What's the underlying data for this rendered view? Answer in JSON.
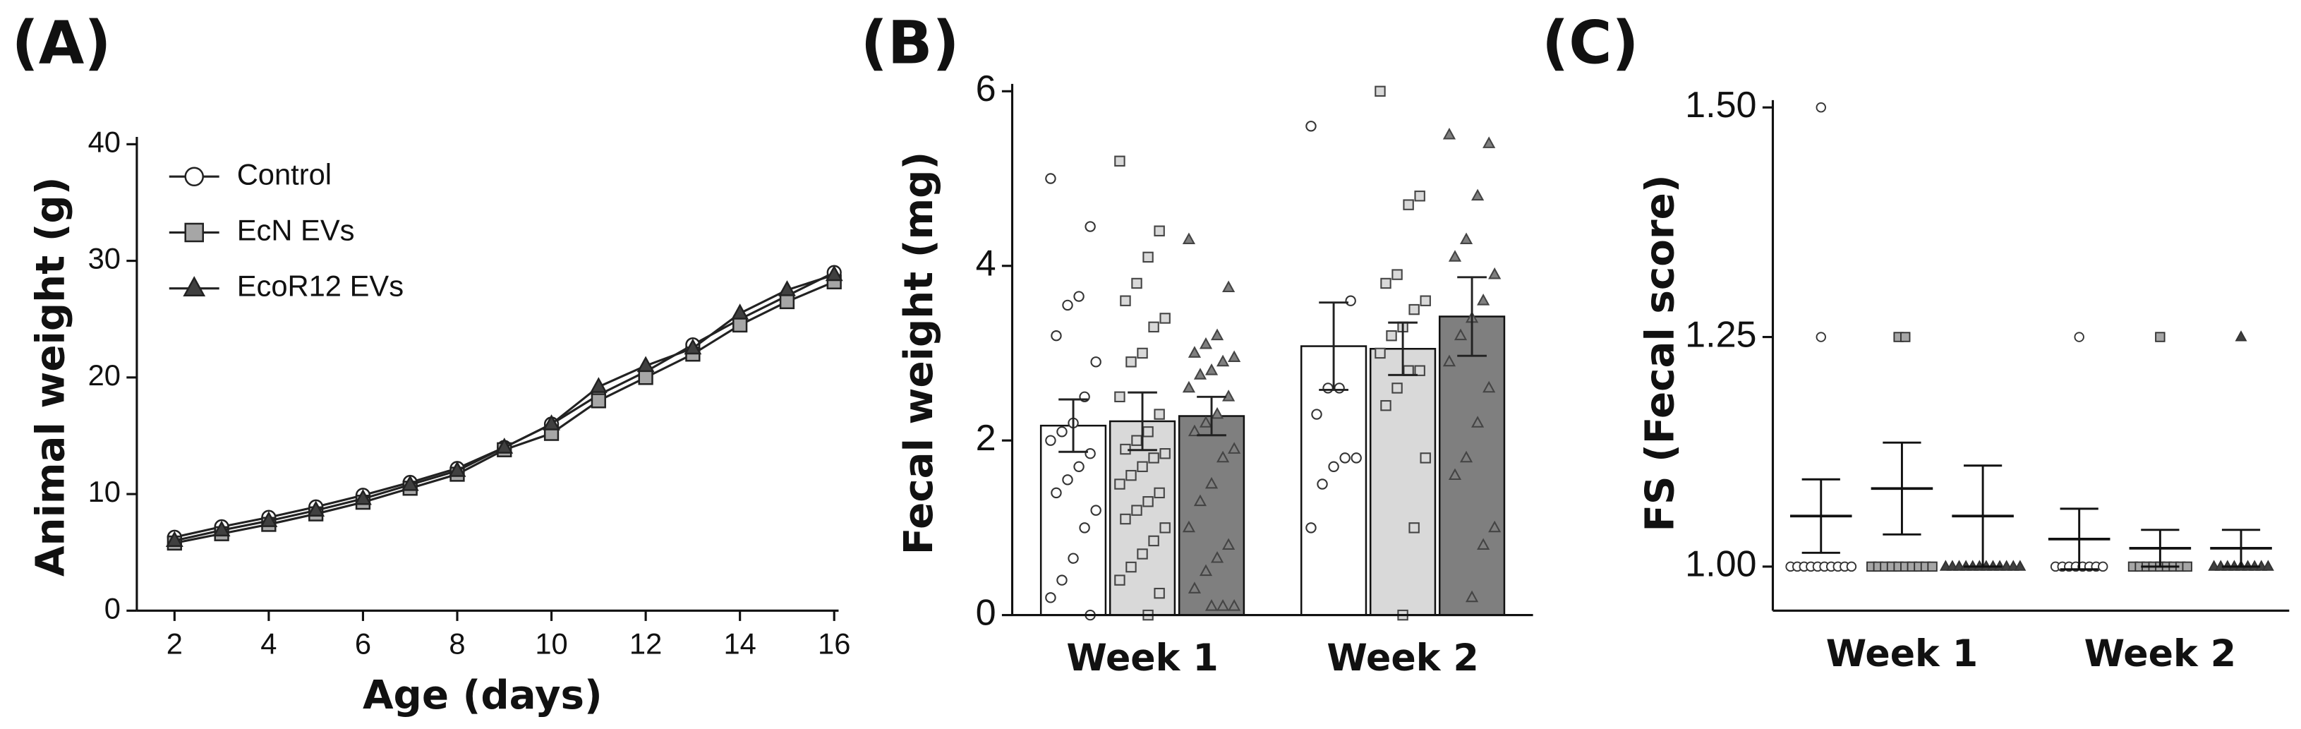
{
  "chart_data": [
    {
      "type": "line",
      "panel_label": "(A)",
      "x_label": "Age (days)",
      "y_label": "Animal weight (g)",
      "x": [
        2,
        3,
        4,
        5,
        6,
        7,
        8,
        9,
        10,
        11,
        12,
        13,
        14,
        15,
        16
      ],
      "xlim": [
        1.2,
        16
      ],
      "xticks": [
        2,
        4,
        6,
        8,
        10,
        12,
        14,
        16
      ],
      "ylim": [
        0,
        40
      ],
      "yticks": [
        0,
        10,
        20,
        30,
        40
      ],
      "legend": "upper left",
      "series": [
        {
          "name": "Control",
          "color": "#ffffff",
          "marker": "circle",
          "values": [
            6.3,
            7.2,
            8.0,
            8.9,
            9.9,
            11.0,
            12.2,
            14.0,
            16.0,
            18.5,
            20.5,
            22.8,
            25.0,
            27.0,
            29.0
          ]
        },
        {
          "name": "EcN EVs",
          "color": "#a6a6a6",
          "marker": "square",
          "values": [
            5.8,
            6.6,
            7.4,
            8.3,
            9.3,
            10.5,
            11.7,
            13.8,
            15.2,
            18.0,
            20.0,
            22.0,
            24.5,
            26.5,
            28.2
          ]
        },
        {
          "name": "EcoR12 EVs",
          "color": "#404040",
          "marker": "triangle",
          "values": [
            6.0,
            6.9,
            7.7,
            8.6,
            9.6,
            10.8,
            12.0,
            14.0,
            16.0,
            19.2,
            21.0,
            22.5,
            25.5,
            27.5,
            28.8
          ]
        }
      ]
    },
    {
      "type": "bar",
      "panel_label": "(B)",
      "y_label": "Fecal weight (mg)",
      "categories": [
        "Week 1",
        "Week 2"
      ],
      "ylim": [
        0,
        6
      ],
      "yticks": [
        0,
        2,
        4,
        6
      ],
      "series": [
        {
          "color": "#ffffff",
          "marker": "circle",
          "values": [
            2.17,
            3.08
          ],
          "errors": [
            0.3,
            0.5
          ],
          "points": [
            [
              5.0,
              4.45,
              3.65,
              3.55,
              3.2,
              2.9,
              2.5,
              2.2,
              2.1,
              2.0,
              1.85,
              1.7,
              1.55,
              1.4,
              1.2,
              1.0,
              0.65,
              0.4,
              0.2,
              0.0
            ],
            [
              5.6,
              3.6,
              2.6,
              2.6,
              2.3,
              1.8,
              1.8,
              1.7,
              1.5,
              1.0
            ]
          ]
        },
        {
          "color": "#d9d9d9",
          "marker": "square",
          "values": [
            2.22,
            3.05
          ],
          "errors": [
            0.33,
            0.3
          ],
          "points": [
            [
              5.2,
              4.4,
              4.1,
              3.8,
              3.6,
              3.4,
              3.3,
              3.0,
              2.9,
              2.5,
              2.3,
              2.1,
              2.0,
              1.9,
              1.85,
              1.8,
              1.7,
              1.6,
              1.5,
              1.4,
              1.3,
              1.2,
              1.1,
              1.0,
              0.85,
              0.7,
              0.55,
              0.4,
              0.25,
              0.0
            ],
            [
              6.0,
              4.8,
              4.7,
              3.9,
              3.8,
              3.6,
              3.5,
              3.3,
              3.2,
              3.0,
              2.8,
              2.8,
              2.6,
              2.4,
              1.8,
              1.0,
              0.0
            ]
          ]
        },
        {
          "color": "#7f7f7f",
          "marker": "triangle",
          "values": [
            2.28,
            3.42
          ],
          "errors": [
            0.22,
            0.45
          ],
          "points": [
            [
              4.3,
              3.75,
              3.2,
              3.1,
              3.0,
              2.95,
              2.9,
              2.8,
              2.75,
              2.6,
              2.5,
              2.3,
              2.2,
              2.1,
              1.9,
              1.8,
              1.5,
              1.3,
              1.0,
              0.8,
              0.65,
              0.5,
              0.3,
              0.1,
              0.1,
              0.1
            ],
            [
              5.5,
              5.4,
              4.8,
              4.3,
              4.1,
              3.9,
              3.6,
              3.4,
              3.2,
              2.9,
              2.6,
              2.2,
              1.8,
              1.6,
              1.0,
              0.8,
              0.2
            ]
          ]
        }
      ]
    },
    {
      "type": "scatter",
      "panel_label": "(C)",
      "y_label": "FS (Fecal score)",
      "categories": [
        "Week 1",
        "Week 2"
      ],
      "ylim": [
        0.952,
        1.5
      ],
      "yticks": [
        {
          "value": 1,
          "label": "1.00"
        },
        {
          "value": 1.25,
          "label": "1.25"
        },
        {
          "value": 1.5,
          "label": "1.50"
        }
      ],
      "series": [
        {
          "color": "#ffffff",
          "marker": "circle",
          "values": [
            1.055,
            1.03
          ],
          "errors": [
            0.04,
            0.033
          ],
          "points": [
            [
              1.5,
              1.25,
              1,
              1,
              1,
              1,
              1,
              1,
              1,
              1,
              1,
              1
            ],
            [
              1.25,
              1,
              1,
              1,
              1,
              1,
              1,
              1,
              1
            ]
          ]
        },
        {
          "color": "#a6a6a6",
          "marker": "square",
          "values": [
            1.085,
            1.02
          ],
          "errors": [
            0.05,
            0.02
          ],
          "points": [
            [
              1.25,
              1.25,
              1,
              1,
              1,
              1,
              1,
              1,
              1,
              1,
              1,
              1
            ],
            [
              1.25,
              1,
              1,
              1,
              1,
              1,
              1,
              1,
              1,
              1
            ]
          ]
        },
        {
          "color": "#404040",
          "marker": "triangle",
          "values": [
            1.055,
            1.02
          ],
          "errors": [
            0.055,
            0.02
          ],
          "points": [
            [
              1,
              1,
              1,
              1,
              1,
              1,
              1,
              1,
              1,
              1,
              1,
              1
            ],
            [
              1.25,
              1,
              1,
              1,
              1,
              1,
              1,
              1,
              1,
              1
            ]
          ]
        }
      ]
    }
  ]
}
